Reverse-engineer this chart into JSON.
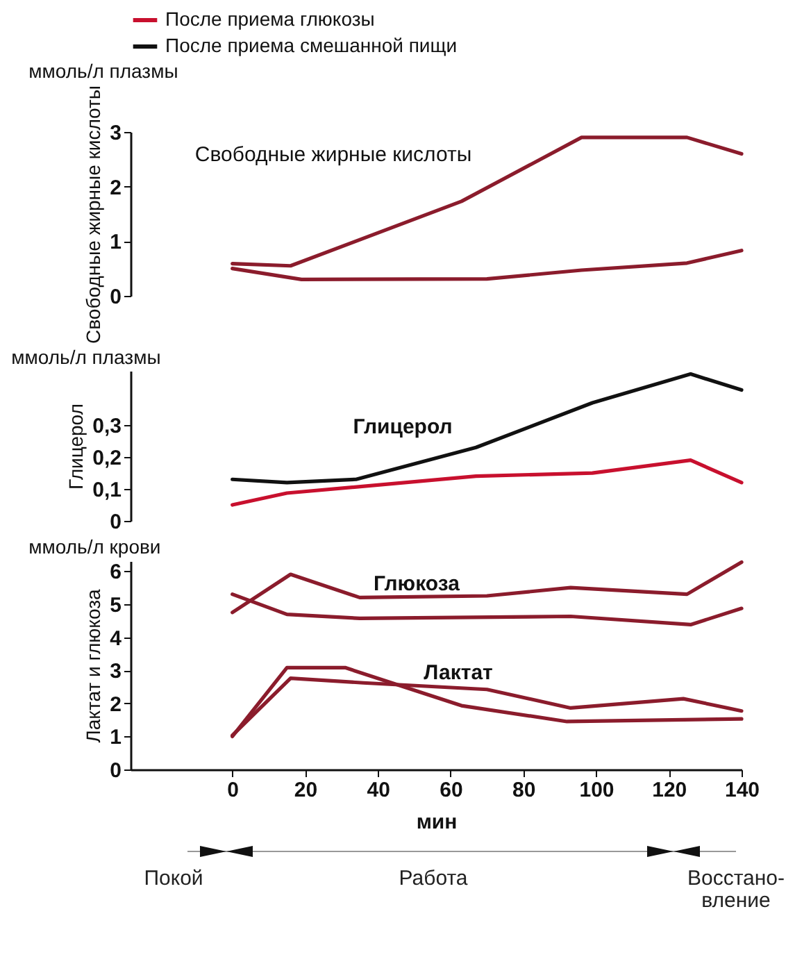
{
  "chart_data": [
    {
      "type": "line",
      "subtitle": "ммоль/л плазмы",
      "ylabel": "Свободные жирные кислоты",
      "xlim": [
        -28,
        140
      ],
      "ylim": [
        0,
        3
      ],
      "yticks": [
        0,
        1,
        2,
        3
      ],
      "tick_labels": "y",
      "grid": false,
      "annotations": [
        "Свободные жирные кислоты"
      ],
      "series": [
        {
          "color": "#8b1c2c",
          "x": [
            0,
            16,
            63,
            96,
            125,
            140
          ],
          "values": [
            0.59,
            0.55,
            1.73,
            2.9,
            2.9,
            2.6
          ]
        },
        {
          "color": "#8b1c2c",
          "x": [
            0,
            19,
            70,
            96,
            125,
            140
          ],
          "values": [
            0.5,
            0.3,
            0.31,
            0.47,
            0.6,
            0.83
          ]
        }
      ]
    },
    {
      "type": "line",
      "subtitle": "ммоль/л плазмы",
      "ylabel": "Глицерол",
      "xlim": [
        -28,
        140
      ],
      "ylim": [
        0,
        0.47
      ],
      "yticks": [
        0,
        {
          "value": 0.1,
          "label": "0,1"
        },
        {
          "value": 0.2,
          "label": "0,2"
        },
        {
          "value": 0.3,
          "label": "0,3"
        }
      ],
      "tick_labels": "y",
      "grid": false,
      "legend": "top",
      "annotations": [
        "Глицерол"
      ],
      "series": [
        {
          "name": "После приема глюкозы",
          "color": "#c8102e",
          "x": [
            0,
            15,
            67,
            99,
            126,
            140
          ],
          "values": [
            0.05,
            0.087,
            0.14,
            0.15,
            0.19,
            0.12
          ]
        },
        {
          "name": "После приема смешанной пищи",
          "color": "#111111",
          "x": [
            0,
            15,
            34,
            67,
            99,
            126,
            140
          ],
          "values": [
            0.13,
            0.12,
            0.13,
            0.23,
            0.37,
            0.46,
            0.41
          ]
        }
      ]
    },
    {
      "type": "line",
      "subtitle": "ммоль/л крови",
      "ylabel": "Лактат и глюкоза",
      "xlabel": "мин",
      "xlim": [
        -28,
        140
      ],
      "ylim": [
        0,
        6.3
      ],
      "yticks": [
        0,
        1,
        2,
        3,
        4,
        5,
        6
      ],
      "xticks": [
        0,
        20,
        40,
        60,
        80,
        100,
        120,
        140
      ],
      "grid": false,
      "annotations": [
        "Глюкоза",
        "Лактат",
        "Покой",
        "Работа",
        "Восстано-вление"
      ],
      "series": [
        {
          "color": "#8b1c2c",
          "x": [
            0,
            16,
            35,
            70,
            93,
            125,
            140
          ],
          "values": [
            4.75,
            5.9,
            5.2,
            5.25,
            5.5,
            5.3,
            6.27
          ]
        },
        {
          "color": "#8b1c2c",
          "x": [
            0,
            15,
            35,
            93,
            126,
            140
          ],
          "values": [
            5.3,
            4.69,
            4.57,
            4.63,
            4.38,
            4.87
          ]
        },
        {
          "color": "#8b1c2c",
          "x": [
            0,
            16,
            36,
            70,
            93,
            124,
            140
          ],
          "values": [
            1.03,
            2.76,
            2.62,
            2.42,
            1.86,
            2.14,
            1.77
          ]
        },
        {
          "color": "#8b1c2c",
          "x": [
            0,
            15,
            31,
            63,
            92,
            140
          ],
          "values": [
            1.0,
            3.08,
            3.08,
            1.93,
            1.45,
            1.53
          ]
        }
      ]
    }
  ]
}
